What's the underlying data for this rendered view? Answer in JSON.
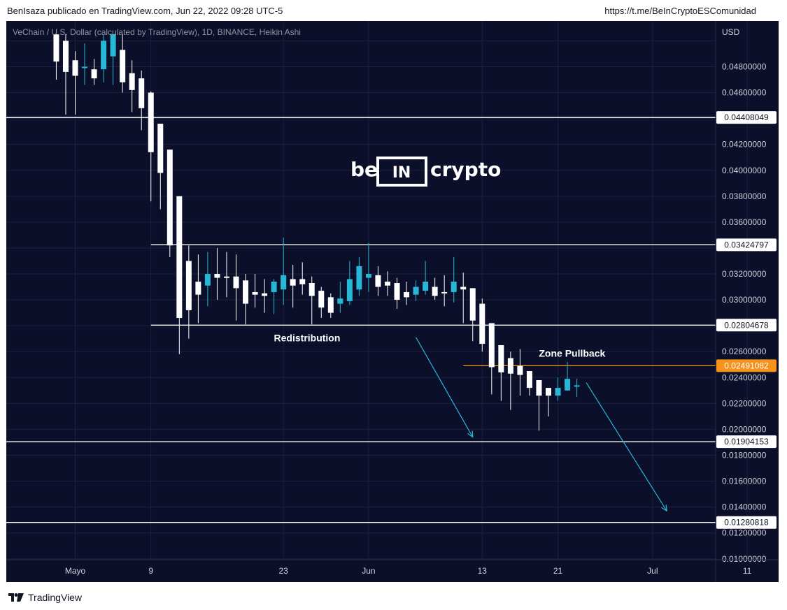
{
  "header": {
    "publisher": "BenIsaza publicado en TradingView.com, Jun 22, 2022 09:28 UTC-5",
    "link": "https://t.me/BeInCryptoESComunidad"
  },
  "footer": {
    "brand": "TradingView",
    "icon": "tradingview-logo-icon"
  },
  "colors": {
    "background": "#0b0f2a",
    "bull": "#26b8d6",
    "bear": "#ffffff",
    "level": "#ffffff",
    "pullback": "#f7931a",
    "arrow": "#26b8d6"
  },
  "watermark": {
    "left": "be",
    "box": "IN",
    "right": "crypto"
  },
  "chart_data": {
    "type": "candlestick",
    "title": "VeChain / U.S. Dollar (calculated by TradingView), 1D, BINANCE, Heikin Ashi",
    "currency": "USD",
    "ylim": [
      0.0088,
      0.0504
    ],
    "y_ticks": [
      "0.04800000",
      "0.04600000",
      "0.04200000",
      "0.04000000",
      "0.03800000",
      "0.03600000",
      "0.03200000",
      "0.03000000",
      "0.02600000",
      "0.02400000",
      "0.02200000",
      "0.02000000",
      "0.01800000",
      "0.01600000",
      "0.01400000",
      "0.01200000",
      "0.01000000"
    ],
    "x_labels": [
      {
        "label": "Mayo",
        "day": 0
      },
      {
        "label": "9",
        "day": 8
      },
      {
        "label": "23",
        "day": 22
      },
      {
        "label": "Jun",
        "day": 31
      },
      {
        "label": "13",
        "day": 43
      },
      {
        "label": "21",
        "day": 51
      },
      {
        "label": "Jul",
        "day": 61
      },
      {
        "label": "11",
        "day": 71
      }
    ],
    "levels": [
      {
        "label": "0.04408049",
        "price": 0.04408049,
        "from_day": -9
      },
      {
        "label": "0.03424797",
        "price": 0.03424797,
        "from_day": 8
      },
      {
        "label": "0.02804678",
        "price": 0.02804678,
        "from_day": 8
      },
      {
        "label": "0.02491082",
        "price": 0.02491082,
        "from_day": 41,
        "highlight": true
      },
      {
        "label": "0.01904153",
        "price": 0.01904153,
        "from_day": -9
      },
      {
        "label": "0.01280818",
        "price": 0.01280818,
        "from_day": -9
      }
    ],
    "annotations": [
      {
        "text": "Redistribution",
        "day": 24.5,
        "price": 0.0268
      },
      {
        "text": "Zone Pullback",
        "day": 52.5,
        "price": 0.0256
      }
    ],
    "arrows": [
      {
        "from_day": 36,
        "from_price": 0.0271,
        "to_day": 42,
        "to_price": 0.0194
      },
      {
        "from_day": 54,
        "from_price": 0.0236,
        "to_day": 62.5,
        "to_price": 0.0137
      }
    ],
    "candles": [
      {
        "day": -2,
        "open": 0.0505,
        "close": 0.0484,
        "high": 0.0505,
        "low": 0.047
      },
      {
        "day": -1,
        "open": 0.05,
        "close": 0.0476,
        "high": 0.0505,
        "low": 0.0443
      },
      {
        "day": 0,
        "open": 0.0485,
        "close": 0.0473,
        "high": 0.0492,
        "low": 0.0443
      },
      {
        "day": 1,
        "open": 0.048,
        "close": 0.048,
        "high": 0.0498,
        "low": 0.0466
      },
      {
        "day": 2,
        "open": 0.0478,
        "close": 0.0471,
        "high": 0.0486,
        "low": 0.0466
      },
      {
        "day": 3,
        "open": 0.0478,
        "close": 0.05,
        "high": 0.0505,
        "low": 0.0468
      },
      {
        "day": 4,
        "open": 0.0488,
        "close": 0.0505,
        "high": 0.0505,
        "low": 0.0466
      },
      {
        "day": 5,
        "open": 0.0493,
        "close": 0.0468,
        "high": 0.0505,
        "low": 0.046
      },
      {
        "day": 6,
        "open": 0.0475,
        "close": 0.0462,
        "high": 0.0485,
        "low": 0.0445
      },
      {
        "day": 7,
        "open": 0.0471,
        "close": 0.0448,
        "high": 0.0477,
        "low": 0.0431
      },
      {
        "day": 8,
        "open": 0.046,
        "close": 0.0414,
        "high": 0.0461,
        "low": 0.0376
      },
      {
        "day": 9,
        "open": 0.0436,
        "close": 0.0398,
        "high": 0.0436,
        "low": 0.037
      },
      {
        "day": 10,
        "open": 0.0416,
        "close": 0.0342,
        "high": 0.0416,
        "low": 0.0333
      },
      {
        "day": 11,
        "open": 0.038,
        "close": 0.0286,
        "high": 0.038,
        "low": 0.0258
      },
      {
        "day": 12,
        "open": 0.033,
        "close": 0.0292,
        "high": 0.0342,
        "low": 0.027
      },
      {
        "day": 13,
        "open": 0.0314,
        "close": 0.0304,
        "high": 0.0335,
        "low": 0.0282
      },
      {
        "day": 14,
        "open": 0.0311,
        "close": 0.032,
        "high": 0.0337,
        "low": 0.0295
      },
      {
        "day": 15,
        "open": 0.032,
        "close": 0.0317,
        "high": 0.034,
        "low": 0.03
      },
      {
        "day": 16,
        "open": 0.0318,
        "close": 0.0317,
        "high": 0.0337,
        "low": 0.0302
      },
      {
        "day": 17,
        "open": 0.0318,
        "close": 0.0309,
        "high": 0.0335,
        "low": 0.0284
      },
      {
        "day": 18,
        "open": 0.0315,
        "close": 0.0297,
        "high": 0.032,
        "low": 0.0281
      },
      {
        "day": 19,
        "open": 0.0306,
        "close": 0.0304,
        "high": 0.032,
        "low": 0.0294
      },
      {
        "day": 20,
        "open": 0.0305,
        "close": 0.0303,
        "high": 0.0316,
        "low": 0.029
      },
      {
        "day": 21,
        "open": 0.0306,
        "close": 0.0314,
        "high": 0.0316,
        "low": 0.0289
      },
      {
        "day": 22,
        "open": 0.0308,
        "close": 0.0319,
        "high": 0.0348,
        "low": 0.0296
      },
      {
        "day": 23,
        "open": 0.0316,
        "close": 0.0311,
        "high": 0.0327,
        "low": 0.0294
      },
      {
        "day": 24,
        "open": 0.0316,
        "close": 0.0312,
        "high": 0.0329,
        "low": 0.0304
      },
      {
        "day": 25,
        "open": 0.0313,
        "close": 0.0303,
        "high": 0.0318,
        "low": 0.0281
      },
      {
        "day": 26,
        "open": 0.0307,
        "close": 0.0294,
        "high": 0.031,
        "low": 0.0286
      },
      {
        "day": 27,
        "open": 0.0302,
        "close": 0.029,
        "high": 0.0305,
        "low": 0.0286
      },
      {
        "day": 28,
        "open": 0.0297,
        "close": 0.0301,
        "high": 0.0314,
        "low": 0.029
      },
      {
        "day": 29,
        "open": 0.0299,
        "close": 0.0316,
        "high": 0.033,
        "low": 0.0296
      },
      {
        "day": 30,
        "open": 0.0308,
        "close": 0.0326,
        "high": 0.0333,
        "low": 0.0303
      },
      {
        "day": 31,
        "open": 0.0317,
        "close": 0.032,
        "high": 0.0344,
        "low": 0.0306
      },
      {
        "day": 32,
        "open": 0.0319,
        "close": 0.031,
        "high": 0.0326,
        "low": 0.0303
      },
      {
        "day": 33,
        "open": 0.0314,
        "close": 0.0311,
        "high": 0.0322,
        "low": 0.0303
      },
      {
        "day": 34,
        "open": 0.0313,
        "close": 0.03,
        "high": 0.0317,
        "low": 0.0293
      },
      {
        "day": 35,
        "open": 0.0306,
        "close": 0.0302,
        "high": 0.0314,
        "low": 0.0296
      },
      {
        "day": 36,
        "open": 0.0304,
        "close": 0.031,
        "high": 0.0315,
        "low": 0.0299
      },
      {
        "day": 37,
        "open": 0.0307,
        "close": 0.0314,
        "high": 0.033,
        "low": 0.0304
      },
      {
        "day": 38,
        "open": 0.031,
        "close": 0.0303,
        "high": 0.0317,
        "low": 0.03
      },
      {
        "day": 39,
        "open": 0.0306,
        "close": 0.0305,
        "high": 0.0319,
        "low": 0.0295
      },
      {
        "day": 40,
        "open": 0.0306,
        "close": 0.0314,
        "high": 0.0333,
        "low": 0.0298
      },
      {
        "day": 41,
        "open": 0.031,
        "close": 0.0308,
        "high": 0.0321,
        "low": 0.0282
      },
      {
        "day": 42,
        "open": 0.0309,
        "close": 0.0284,
        "high": 0.0309,
        "low": 0.0268
      },
      {
        "day": 43,
        "open": 0.0297,
        "close": 0.0266,
        "high": 0.0301,
        "low": 0.026
      },
      {
        "day": 44,
        "open": 0.0282,
        "close": 0.0248,
        "high": 0.0282,
        "low": 0.0227
      },
      {
        "day": 45,
        "open": 0.0265,
        "close": 0.0244,
        "high": 0.0265,
        "low": 0.0222
      },
      {
        "day": 46,
        "open": 0.0255,
        "close": 0.0243,
        "high": 0.026,
        "low": 0.0215
      },
      {
        "day": 47,
        "open": 0.0249,
        "close": 0.0242,
        "high": 0.0262,
        "low": 0.0226
      },
      {
        "day": 48,
        "open": 0.0245,
        "close": 0.0232,
        "high": 0.0245,
        "low": 0.0226
      },
      {
        "day": 49,
        "open": 0.0238,
        "close": 0.0226,
        "high": 0.0238,
        "low": 0.0199
      },
      {
        "day": 50,
        "open": 0.0232,
        "close": 0.0226,
        "high": 0.0232,
        "low": 0.021
      },
      {
        "day": 51,
        "open": 0.0226,
        "close": 0.0232,
        "high": 0.024,
        "low": 0.0222
      },
      {
        "day": 52,
        "open": 0.023,
        "close": 0.0239,
        "high": 0.0252,
        "low": 0.023
      },
      {
        "day": 53,
        "open": 0.0234,
        "close": 0.0234,
        "high": 0.0239,
        "low": 0.0225
      }
    ]
  }
}
